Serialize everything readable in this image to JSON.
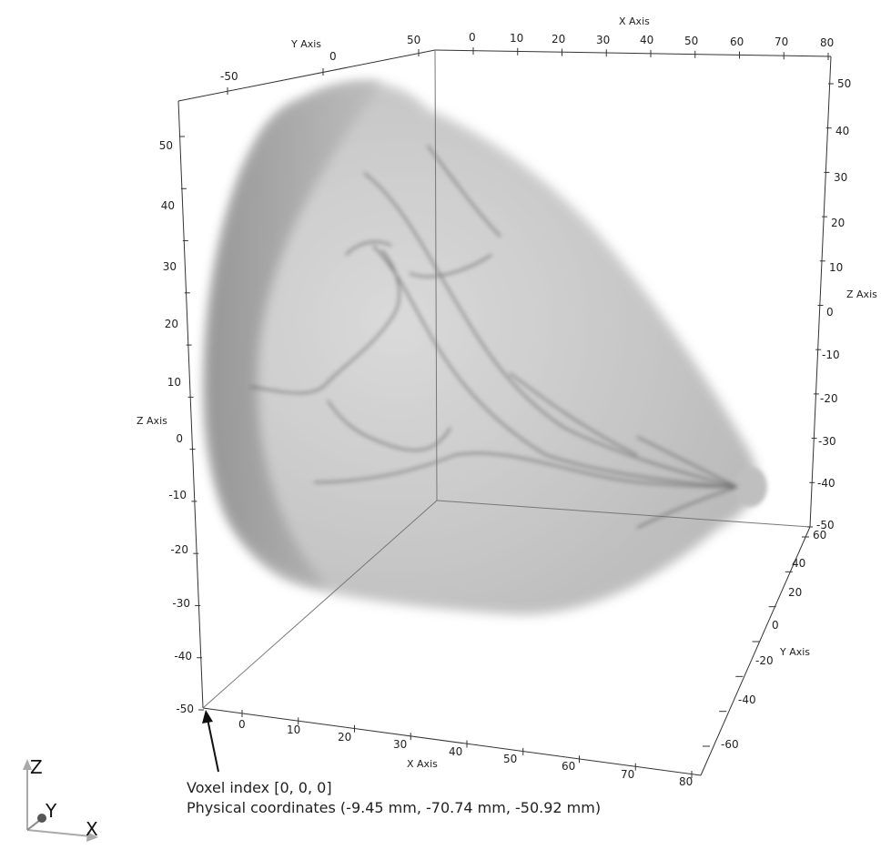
{
  "axes": {
    "x_title": "X Axis",
    "y_title": "Y Axis",
    "z_title": "Z Axis",
    "top_x_ticks": [
      "0",
      "10",
      "20",
      "30",
      "40",
      "50",
      "60",
      "70",
      "80"
    ],
    "top_y_ticks": [
      "-50",
      "0",
      "50"
    ],
    "left_z_ticks": [
      "50",
      "40",
      "30",
      "20",
      "10",
      "0",
      "-10",
      "-20",
      "-30",
      "-40",
      "-50"
    ],
    "right_z_ticks": [
      "50",
      "40",
      "30",
      "20",
      "10",
      "0",
      "-10",
      "-20",
      "-30",
      "-40",
      "-50"
    ],
    "bottom_x_ticks": [
      "0",
      "10",
      "20",
      "30",
      "40",
      "50",
      "60",
      "70",
      "80"
    ],
    "right_y_ticks": [
      "60",
      "40",
      "20",
      "0",
      "-20",
      "-40",
      "-60"
    ]
  },
  "annotation": {
    "voxel_line": "Voxel index [0, 0, 0]",
    "physical_line": "Physical coordinates (-9.45 mm, -70.74 mm, -50.92 mm)"
  },
  "orientation": {
    "z": "Z",
    "y": "Y",
    "x": "X"
  },
  "colors": {
    "volume": "#9a9a9a",
    "vessels": "#5e5e5e",
    "axis_line": "#333333"
  }
}
